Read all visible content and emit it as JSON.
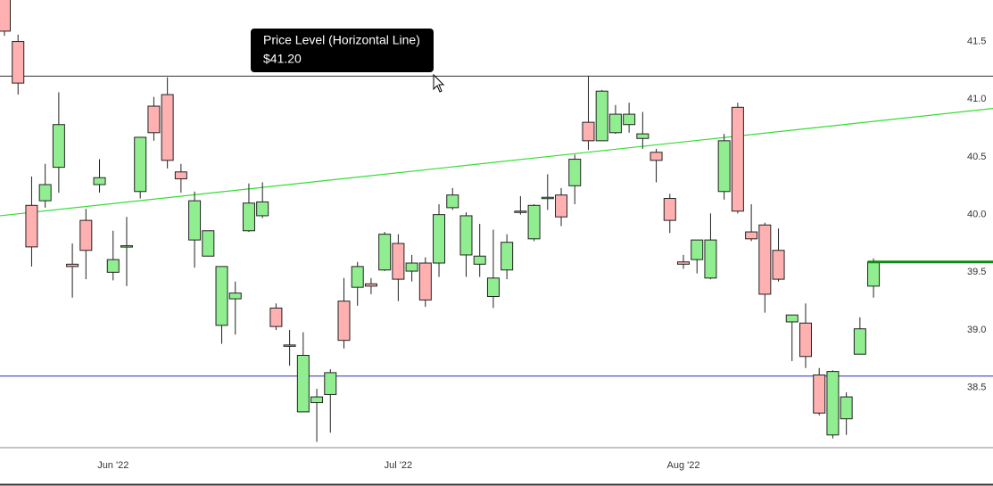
{
  "chart_data": {
    "type": "candlestick",
    "categories": [
      null,
      null,
      null,
      null,
      null,
      null,
      null,
      null,
      "Jun '22",
      null,
      null,
      null,
      null,
      null,
      null,
      null,
      null,
      null,
      null,
      null,
      null,
      null,
      null,
      null,
      null,
      null,
      null,
      null,
      null,
      "Jul '22",
      null,
      null,
      null,
      null,
      null,
      null,
      null,
      null,
      null,
      null,
      null,
      null,
      null,
      null,
      null,
      null,
      null,
      null,
      null,
      null,
      "Aug '22",
      null,
      null,
      null,
      null,
      null,
      null,
      null,
      null,
      null,
      null,
      null,
      null,
      null,
      null
    ],
    "series": {
      "up_color": "#90ee90",
      "down_color": "#ffb0b0",
      "open": [
        41.9,
        41.5,
        40.08,
        40.12,
        40.41,
        39.57,
        39.95,
        40.26,
        39.5,
        39.73,
        40.2,
        40.94,
        41.04,
        40.37,
        39.78,
        39.64,
        39.04,
        39.27,
        39.86,
        39.99,
        39.19,
        38.87,
        38.29,
        38.37,
        38.44,
        39.25,
        39.37,
        39.4,
        39.52,
        39.75,
        39.51,
        39.58,
        39.58,
        40.06,
        39.65,
        39.57,
        39.29,
        39.52,
        40.02,
        39.79,
        40.15,
        40.17,
        40.25,
        40.8,
        40.64,
        40.71,
        40.78,
        40.66,
        40.54,
        40.14,
        39.59,
        39.61,
        39.45,
        40.2,
        40.93,
        39.85,
        39.91,
        39.69,
        39.07,
        39.06,
        38.61,
        38.09,
        38.23,
        38.79,
        39.38
      ],
      "high": [
        41.95,
        41.56,
        40.33,
        40.44,
        41.06,
        39.75,
        40.05,
        40.48,
        39.86,
        39.98,
        40.67,
        41.02,
        41.19,
        40.44,
        40.2,
        39.86,
        39.55,
        39.42,
        40.27,
        40.28,
        39.23,
        39.0,
        38.98,
        38.49,
        38.66,
        39.45,
        39.59,
        39.45,
        39.85,
        39.83,
        39.65,
        39.63,
        40.09,
        40.23,
        40.02,
        39.92,
        39.87,
        39.83,
        40.16,
        40.09,
        40.35,
        40.23,
        40.52,
        41.2,
        41.08,
        40.95,
        40.97,
        40.89,
        40.57,
        40.18,
        39.65,
        39.78,
        40.01,
        40.7,
        40.97,
        40.09,
        39.93,
        39.88,
        39.13,
        39.23,
        38.67,
        38.65,
        38.46,
        39.11,
        39.62
      ],
      "low": [
        41.55,
        41.04,
        39.55,
        40.06,
        40.19,
        39.28,
        39.44,
        40.19,
        39.43,
        39.38,
        40.14,
        40.64,
        40.4,
        40.19,
        39.54,
        39.64,
        38.88,
        38.96,
        39.85,
        39.97,
        39.0,
        38.69,
        38.29,
        38.03,
        38.11,
        38.84,
        39.21,
        39.31,
        39.51,
        39.25,
        39.42,
        39.2,
        39.46,
        40.04,
        39.46,
        39.46,
        39.19,
        39.44,
        40.0,
        39.77,
        40.04,
        39.9,
        40.09,
        40.56,
        40.64,
        40.7,
        40.71,
        40.57,
        40.28,
        39.84,
        39.53,
        39.49,
        39.44,
        40.13,
        40.01,
        39.77,
        39.15,
        39.42,
        38.73,
        38.67,
        38.26,
        38.06,
        38.09,
        38.79,
        39.28
      ],
      "close": [
        41.59,
        41.14,
        39.72,
        40.26,
        40.78,
        39.55,
        39.69,
        40.32,
        39.61,
        39.73,
        40.67,
        40.71,
        40.47,
        40.31,
        40.12,
        39.86,
        39.55,
        39.32,
        40.1,
        40.11,
        39.03,
        38.87,
        38.78,
        38.42,
        38.63,
        38.91,
        39.55,
        39.38,
        39.83,
        39.44,
        39.58,
        39.26,
        40.0,
        40.17,
        39.99,
        39.64,
        39.45,
        39.76,
        40.03,
        40.08,
        40.15,
        39.98,
        40.48,
        40.64,
        41.07,
        40.87,
        40.87,
        40.7,
        40.47,
        39.95,
        39.57,
        39.78,
        39.78,
        40.64,
        40.03,
        39.79,
        39.31,
        39.44,
        39.13,
        38.77,
        38.28,
        38.64,
        38.42,
        39.01,
        39.59
      ]
    },
    "ylim": [
      37.98,
      41.86
    ],
    "yticks": [
      38.5,
      {
        "value": 39,
        "label": "39.0"
      },
      39.5,
      {
        "value": 40,
        "label": "40.0"
      },
      40.5,
      {
        "value": 41,
        "label": "41.0"
      },
      41.5
    ],
    "hlines": [
      {
        "value": 41.2,
        "color": "#333333"
      },
      {
        "value": 38.6,
        "color": "#2a2ab8"
      }
    ],
    "trendline": {
      "values": [
        39.99,
        40.92
      ],
      "color": "#33dd33"
    },
    "last_price": {
      "value": 39.59,
      "color": "#118811"
    },
    "tooltip": {
      "title": "Price Level (Horizontal Line)",
      "value": 41.2,
      "value_label": "$41.20"
    }
  }
}
